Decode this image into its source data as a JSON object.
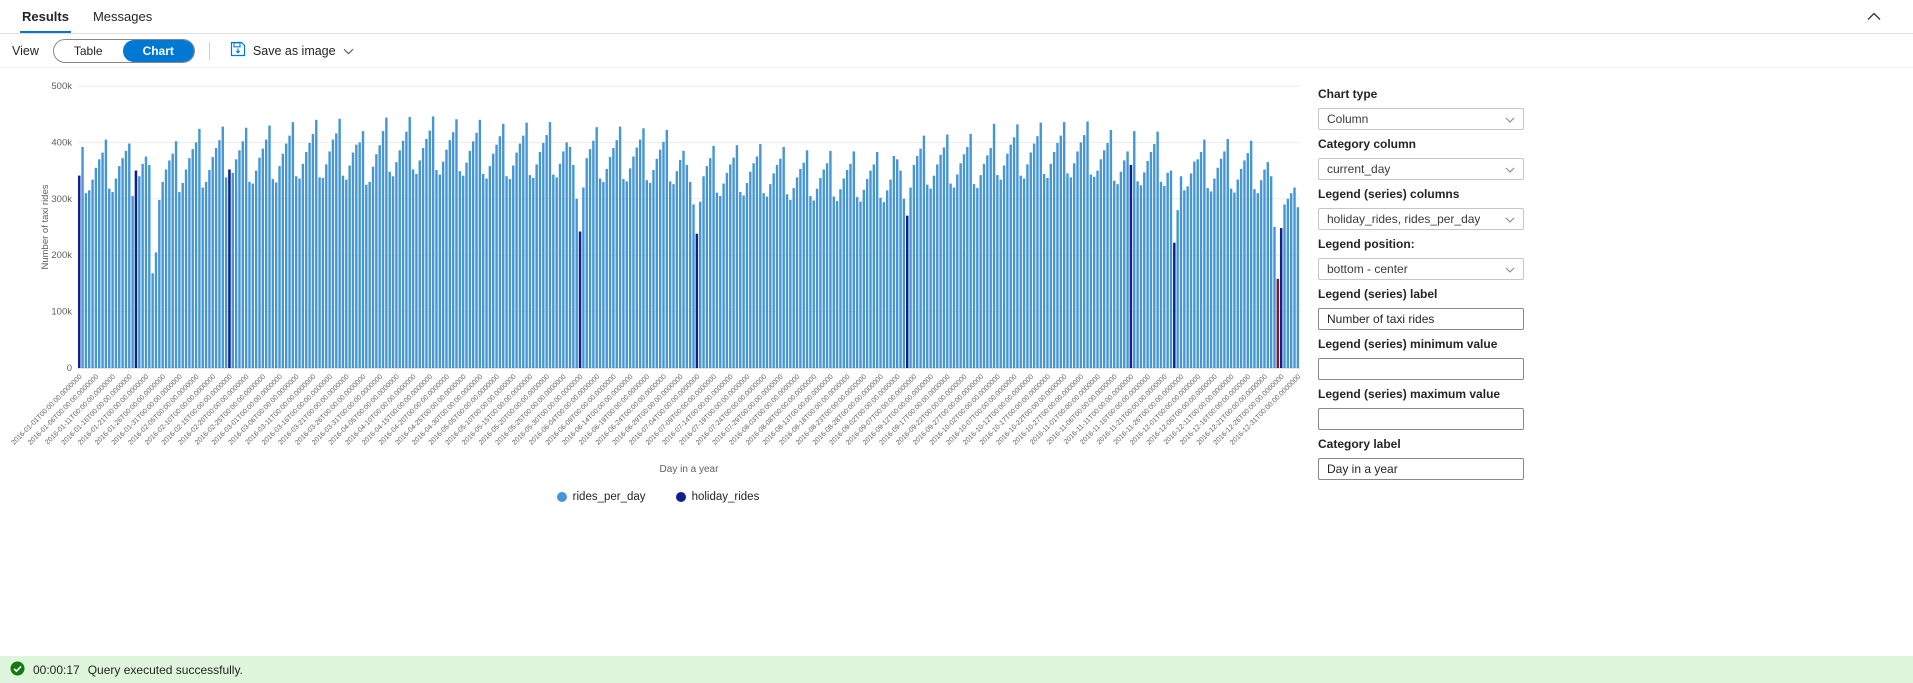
{
  "colors": {
    "accent": "#0078d4",
    "status_bar_background": "#dff6dd",
    "status_check_green": "#107c10",
    "rides_bar_blue": "#4596d3",
    "holiday_bar_navy": "#101f8e"
  },
  "tabs": {
    "results": "Results",
    "messages": "Messages"
  },
  "toolbar": {
    "view_label": "View",
    "table_label": "Table",
    "chart_label": "Chart",
    "save_as_image_label": "Save as image"
  },
  "panel": {
    "chart_type": {
      "label": "Chart type",
      "value": "Column"
    },
    "category_column": {
      "label": "Category column",
      "value": "current_day"
    },
    "legend_columns": {
      "label": "Legend (series) columns",
      "value": "holiday_rides, rides_per_day"
    },
    "legend_position": {
      "label": "Legend position:",
      "value": "bottom - center"
    },
    "legend_label": {
      "label": "Legend (series) label",
      "value": "Number of taxi rides"
    },
    "legend_min": {
      "label": "Legend (series) minimum value",
      "value": ""
    },
    "legend_max": {
      "label": "Legend (series) maximum value",
      "value": ""
    },
    "category_label": {
      "label": "Category label",
      "value": "Day in a year"
    }
  },
  "status": {
    "duration": "00:00:17",
    "message": "Query executed successfully."
  },
  "chart_data": {
    "type": "bar",
    "title": "",
    "xlabel": "Day in a year",
    "ylabel": "Number of taxi rides",
    "values_unit": "thousands of rides",
    "ylim_k": [
      0,
      500
    ],
    "ytick_labels": [
      "0",
      "100k",
      "200k",
      "300k",
      "400k",
      "500k"
    ],
    "x": {
      "start_date": "2016-01-01",
      "days": 366,
      "tick_interval_days": 5,
      "tick_label_format": "YYYY-MM-DDT00:00:00.0000000"
    },
    "legend_position": "bottom - center",
    "series": [
      {
        "name": "rides_per_day",
        "color": "#4596d3",
        "values_k": [
          341,
          392,
          310,
          315,
          334,
          355,
          370,
          382,
          405,
          318,
          312,
          336,
          358,
          372,
          385,
          398,
          305,
          350,
          340,
          362,
          375,
          360,
          168,
          205,
          298,
          330,
          352,
          368,
          380,
          402,
          312,
          328,
          352,
          372,
          388,
          400,
          424,
          320,
          330,
          351,
          374,
          390,
          404,
          428,
          338,
          352,
          346,
          370,
          386,
          402,
          426,
          330,
          327,
          350,
          373,
          389,
          405,
          430,
          335,
          329,
          358,
          380,
          398,
          412,
          436,
          340,
          336,
          362,
          383,
          399,
          415,
          440,
          338,
          337,
          361,
          384,
          405,
          416,
          442,
          341,
          334,
          359,
          382,
          396,
          400,
          420,
          325,
          330,
          357,
          379,
          395,
          420,
          444,
          348,
          340,
          365,
          386,
          403,
          419,
          445,
          352,
          344,
          368,
          390,
          406,
          421,
          446,
          351,
          343,
          366,
          387,
          404,
          418,
          441,
          349,
          341,
          364,
          385,
          402,
          417,
          440,
          344,
          336,
          358,
          380,
          396,
          411,
          433,
          340,
          335,
          359,
          382,
          398,
          412,
          435,
          342,
          337,
          361,
          383,
          399,
          413,
          436,
          343,
          338,
          362,
          384,
          400,
          392,
          360,
          300,
          242,
          320,
          372,
          388,
          403,
          427,
          336,
          330,
          353,
          374,
          390,
          404,
          428,
          335,
          331,
          354,
          375,
          391,
          405,
          425,
          333,
          328,
          351,
          371,
          387,
          401,
          422,
          331,
          326,
          349,
          369,
          385,
          360,
          330,
          290,
          238,
          295,
          340,
          358,
          372,
          394,
          311,
          305,
          327,
          346,
          361,
          373,
          395,
          312,
          306,
          328,
          348,
          363,
          375,
          397,
          310,
          304,
          326,
          345,
          360,
          371,
          392,
          308,
          298,
          319,
          338,
          353,
          364,
          386,
          305,
          297,
          318,
          337,
          352,
          363,
          385,
          304,
          296,
          317,
          336,
          351,
          362,
          384,
          303,
          295,
          316,
          335,
          350,
          361,
          383,
          302,
          294,
          315,
          334,
          376,
          370,
          350,
          300,
          270,
          320,
          360,
          376,
          389,
          412,
          325,
          318,
          341,
          361,
          378,
          391,
          414,
          327,
          320,
          343,
          363,
          379,
          392,
          415,
          326,
          319,
          342,
          362,
          377,
          390,
          433,
          342,
          334,
          359,
          380,
          396,
          409,
          432,
          341,
          336,
          361,
          382,
          398,
          411,
          435,
          344,
          337,
          362,
          383,
          399,
          412,
          436,
          345,
          338,
          363,
          384,
          400,
          413,
          437,
          343,
          339,
          350,
          370,
          386,
          399,
          422,
          332,
          326,
          348,
          368,
          384,
          360,
          420,
          331,
          324,
          347,
          367,
          383,
          397,
          419,
          330,
          323,
          346,
          350,
          222,
          280,
          340,
          315,
          322,
          345,
          366,
          370,
          383,
          405,
          319,
          313,
          336,
          355,
          371,
          384,
          406,
          318,
          311,
          334,
          353,
          368,
          381,
          403,
          317,
          310,
          333,
          352,
          365,
          340,
          250,
          158,
          248,
          290,
          300,
          310,
          320,
          285
        ]
      },
      {
        "name": "holiday_rides",
        "color": "#101f8e",
        "points": [
          {
            "date": "2016-01-01",
            "value_k": 341
          },
          {
            "date": "2016-01-18",
            "value_k": 350
          },
          {
            "date": "2016-02-15",
            "value_k": 352
          },
          {
            "date": "2016-05-30",
            "value_k": 242
          },
          {
            "date": "2016-07-04",
            "value_k": 238
          },
          {
            "date": "2016-09-05",
            "value_k": 270
          },
          {
            "date": "2016-11-11",
            "value_k": 360
          },
          {
            "date": "2016-11-24",
            "value_k": 222
          },
          {
            "date": "2016-12-25",
            "value_k": 158,
            "color": "#7f1d1d"
          },
          {
            "date": "2016-12-26",
            "value_k": 248
          }
        ]
      }
    ]
  }
}
